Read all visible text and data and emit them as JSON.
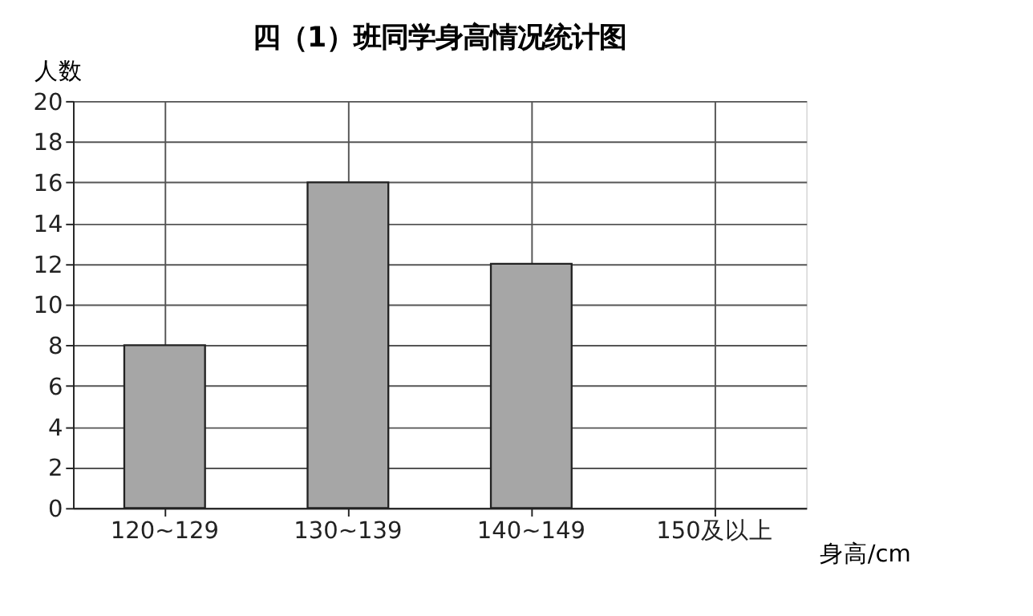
{
  "chart_data": {
    "type": "bar",
    "title": "四（1）班同学身高情况统计图",
    "xlabel": "身高/cm",
    "ylabel": "人数",
    "categories": [
      "120~129",
      "130~139",
      "140~149",
      "150及以上"
    ],
    "values": [
      8,
      16,
      12,
      null
    ],
    "color": "#a6a6a6",
    "ylim": [
      0,
      20
    ],
    "yticks": [
      0,
      2,
      4,
      6,
      8,
      10,
      12,
      14,
      16,
      18,
      20
    ],
    "grid": true
  }
}
